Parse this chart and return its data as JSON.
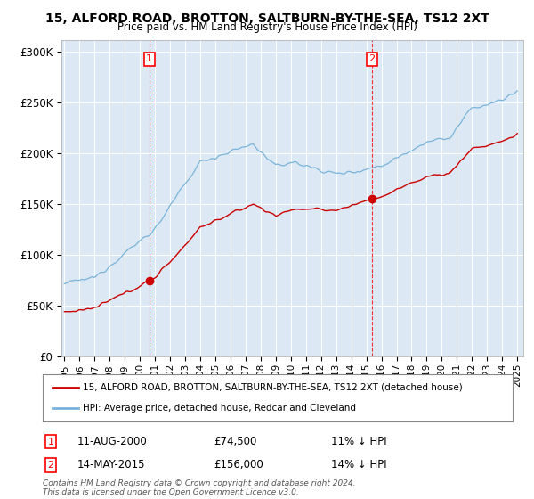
{
  "title": "15, ALFORD ROAD, BROTTON, SALTBURN-BY-THE-SEA, TS12 2XT",
  "subtitle": "Price paid vs. HM Land Registry's House Price Index (HPI)",
  "ylabel_ticks": [
    "£0",
    "£50K",
    "£100K",
    "£150K",
    "£200K",
    "£250K",
    "£300K"
  ],
  "ytick_values": [
    0,
    50000,
    100000,
    150000,
    200000,
    250000,
    300000
  ],
  "ylim": [
    0,
    312000
  ],
  "plot_bg": "#dce9f5",
  "hpi_color": "#7ab3d9",
  "price_color": "#cc0000",
  "sale1_yr": 2000.625,
  "sale1_price": 74500,
  "sale1_label": "1",
  "sale1_date": "11-AUG-2000",
  "sale1_pct": "11%",
  "sale2_yr": 2015.375,
  "sale2_price": 156000,
  "sale2_label": "2",
  "sale2_date": "14-MAY-2015",
  "sale2_pct": "14%",
  "legend_house": "15, ALFORD ROAD, BROTTON, SALTBURN-BY-THE-SEA, TS12 2XT (detached house)",
  "legend_hpi": "HPI: Average price, detached house, Redcar and Cleveland",
  "footer": "Contains HM Land Registry data © Crown copyright and database right 2024.\nThis data is licensed under the Open Government Licence v3.0.",
  "xtick_years": [
    "1995",
    "1996",
    "1997",
    "1998",
    "1999",
    "2000",
    "2001",
    "2002",
    "2003",
    "2004",
    "2005",
    "2006",
    "2007",
    "2008",
    "2009",
    "2010",
    "2011",
    "2012",
    "2013",
    "2014",
    "2015",
    "2016",
    "2017",
    "2018",
    "2019",
    "2020",
    "2021",
    "2022",
    "2023",
    "2024",
    "2025"
  ]
}
